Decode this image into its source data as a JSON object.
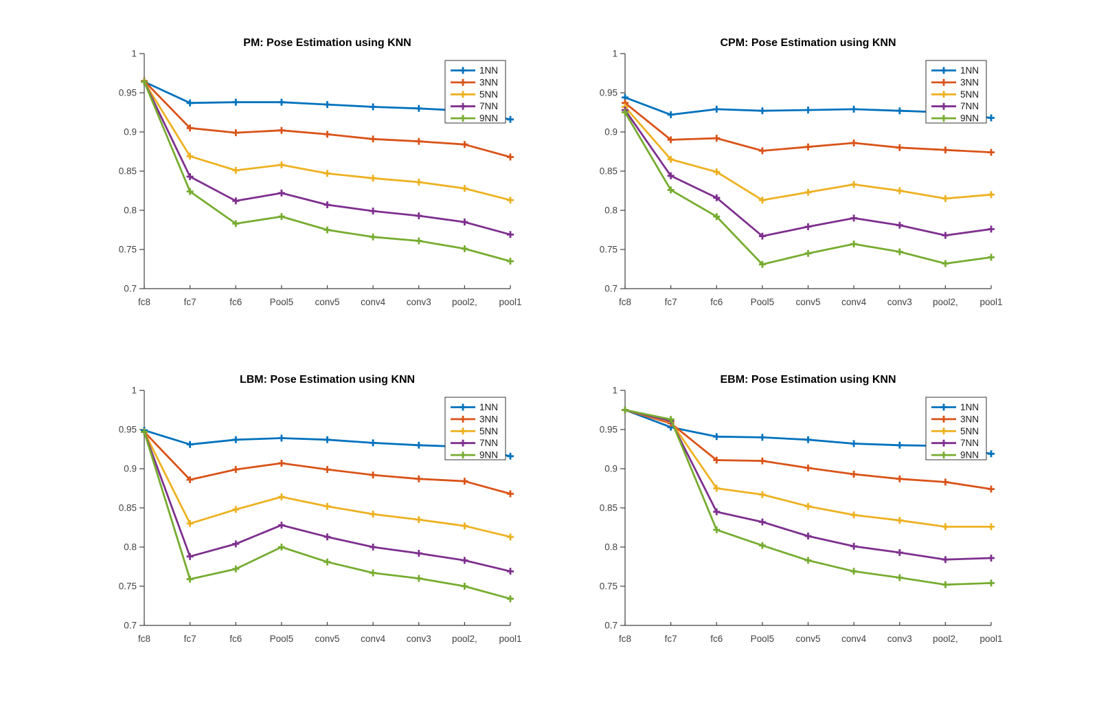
{
  "figure": {
    "background_color": "#ffffff",
    "axis_color": "#404040",
    "tick_label_color": "#424242",
    "title_color": "#000000",
    "legend_border_color": "#333333",
    "legend_background": "#ffffff"
  },
  "series_colors": {
    "1NN": "#0072BD",
    "3NN": "#D95319",
    "5NN": "#EDB120",
    "7NN": "#7E2F8E",
    "9NN": "#77AC30"
  },
  "chart_data": [
    {
      "id": "pm",
      "type": "line",
      "title": "PM: Pose Estimation using KNN",
      "xlabel": "",
      "ylabel": "",
      "grid": false,
      "legend_position": "top-right",
      "legend_entries": [
        "1NN",
        "3NN",
        "5NN",
        "7NN",
        "9NN"
      ],
      "categories": [
        "fc8",
        "fc7",
        "fc6",
        "Pool5",
        "conv5",
        "conv4",
        "conv3",
        "pool2,",
        "pool1"
      ],
      "ylim": [
        0.7,
        1.0
      ],
      "ytick_labels": [
        "0.7",
        "0.75",
        "0.8",
        "0.85",
        "0.9",
        "0.95",
        "1"
      ],
      "yticks": [
        0.7,
        0.75,
        0.8,
        0.85,
        0.9,
        0.95,
        1.0
      ],
      "series": [
        {
          "name": "1NN",
          "color": "#0072BD",
          "values": [
            0.964,
            0.937,
            0.938,
            0.938,
            0.935,
            0.932,
            0.93,
            0.927,
            0.916
          ]
        },
        {
          "name": "3NN",
          "color": "#D95319",
          "values": [
            0.965,
            0.905,
            0.899,
            0.902,
            0.897,
            0.891,
            0.888,
            0.884,
            0.868
          ]
        },
        {
          "name": "5NN",
          "color": "#EDB120",
          "values": [
            0.964,
            0.869,
            0.851,
            0.858,
            0.847,
            0.841,
            0.836,
            0.828,
            0.813
          ]
        },
        {
          "name": "7NN",
          "color": "#7E2F8E",
          "values": [
            0.964,
            0.843,
            0.812,
            0.822,
            0.807,
            0.799,
            0.793,
            0.785,
            0.769
          ]
        },
        {
          "name": "9NN",
          "color": "#77AC30",
          "values": [
            0.964,
            0.824,
            0.783,
            0.792,
            0.775,
            0.766,
            0.761,
            0.751,
            0.735
          ]
        }
      ]
    },
    {
      "id": "cpm",
      "type": "line",
      "title": "CPM: Pose Estimation using KNN",
      "xlabel": "",
      "ylabel": "",
      "grid": false,
      "legend_position": "top-right",
      "legend_entries": [
        "1NN",
        "3NN",
        "5NN",
        "7NN",
        "9NN"
      ],
      "categories": [
        "fc8",
        "fc7",
        "fc6",
        "Pool5",
        "conv5",
        "conv4",
        "conv3",
        "pool2,",
        "pool1"
      ],
      "ylim": [
        0.7,
        1.0
      ],
      "ytick_labels": [
        "0.7",
        "0.75",
        "0.8",
        "0.85",
        "0.9",
        "0.95",
        "1"
      ],
      "yticks": [
        0.7,
        0.75,
        0.8,
        0.85,
        0.9,
        0.95,
        1.0
      ],
      "series": [
        {
          "name": "1NN",
          "color": "#0072BD",
          "values": [
            0.944,
            0.922,
            0.929,
            0.927,
            0.928,
            0.929,
            0.927,
            0.925,
            0.918
          ]
        },
        {
          "name": "3NN",
          "color": "#D95319",
          "values": [
            0.937,
            0.89,
            0.892,
            0.876,
            0.881,
            0.886,
            0.88,
            0.877,
            0.874
          ]
        },
        {
          "name": "5NN",
          "color": "#EDB120",
          "values": [
            0.932,
            0.865,
            0.849,
            0.813,
            0.823,
            0.833,
            0.825,
            0.815,
            0.82
          ]
        },
        {
          "name": "7NN",
          "color": "#7E2F8E",
          "values": [
            0.928,
            0.844,
            0.816,
            0.767,
            0.779,
            0.79,
            0.781,
            0.768,
            0.776
          ]
        },
        {
          "name": "9NN",
          "color": "#77AC30",
          "values": [
            0.925,
            0.826,
            0.792,
            0.731,
            0.745,
            0.757,
            0.747,
            0.732,
            0.74
          ]
        }
      ]
    },
    {
      "id": "lbm",
      "type": "line",
      "title": "LBM: Pose Estimation using KNN",
      "xlabel": "",
      "ylabel": "",
      "grid": false,
      "legend_position": "top-right",
      "legend_entries": [
        "1NN",
        "3NN",
        "5NN",
        "7NN",
        "9NN"
      ],
      "categories": [
        "fc8",
        "fc7",
        "fc6",
        "Pool5",
        "conv5",
        "conv4",
        "conv3",
        "pool2,",
        "pool1"
      ],
      "ylim": [
        0.7,
        1.0
      ],
      "ytick_labels": [
        "0.7",
        "0.75",
        "0.8",
        "0.85",
        "0.9",
        "0.95",
        "1"
      ],
      "yticks": [
        0.7,
        0.75,
        0.8,
        0.85,
        0.9,
        0.95,
        1.0
      ],
      "series": [
        {
          "name": "1NN",
          "color": "#0072BD",
          "values": [
            0.949,
            0.931,
            0.937,
            0.939,
            0.937,
            0.933,
            0.93,
            0.928,
            0.916
          ]
        },
        {
          "name": "3NN",
          "color": "#D95319",
          "values": [
            0.947,
            0.886,
            0.899,
            0.907,
            0.899,
            0.892,
            0.887,
            0.884,
            0.868
          ]
        },
        {
          "name": "5NN",
          "color": "#EDB120",
          "values": [
            0.947,
            0.83,
            0.848,
            0.864,
            0.852,
            0.842,
            0.835,
            0.827,
            0.813
          ]
        },
        {
          "name": "7NN",
          "color": "#7E2F8E",
          "values": [
            0.947,
            0.788,
            0.804,
            0.828,
            0.813,
            0.8,
            0.792,
            0.783,
            0.769
          ]
        },
        {
          "name": "9NN",
          "color": "#77AC30",
          "values": [
            0.947,
            0.759,
            0.772,
            0.8,
            0.781,
            0.767,
            0.76,
            0.75,
            0.734
          ]
        }
      ]
    },
    {
      "id": "ebm",
      "type": "line",
      "title": "EBM: Pose Estimation using KNN",
      "xlabel": "",
      "ylabel": "",
      "grid": false,
      "legend_position": "top-right",
      "legend_entries": [
        "1NN",
        "3NN",
        "5NN",
        "7NN",
        "9NN"
      ],
      "categories": [
        "fc8",
        "fc7",
        "fc6",
        "Pool5",
        "conv5",
        "conv4",
        "conv3",
        "pool2,",
        "pool1"
      ],
      "ylim": [
        0.7,
        1.0
      ],
      "ytick_labels": [
        "0.7",
        "0.75",
        "0.8",
        "0.85",
        "0.9",
        "0.95",
        "1"
      ],
      "yticks": [
        0.7,
        0.75,
        0.8,
        0.85,
        0.9,
        0.95,
        1.0
      ],
      "series": [
        {
          "name": "1NN",
          "color": "#0072BD",
          "values": [
            0.975,
            0.953,
            0.941,
            0.94,
            0.937,
            0.932,
            0.93,
            0.929,
            0.919
          ]
        },
        {
          "name": "3NN",
          "color": "#D95319",
          "values": [
            0.975,
            0.958,
            0.911,
            0.91,
            0.901,
            0.893,
            0.887,
            0.883,
            0.874
          ]
        },
        {
          "name": "5NN",
          "color": "#EDB120",
          "values": [
            0.975,
            0.96,
            0.875,
            0.867,
            0.852,
            0.841,
            0.834,
            0.826,
            0.826
          ]
        },
        {
          "name": "7NN",
          "color": "#7E2F8E",
          "values": [
            0.975,
            0.961,
            0.845,
            0.832,
            0.814,
            0.801,
            0.793,
            0.784,
            0.786
          ]
        },
        {
          "name": "9NN",
          "color": "#77AC30",
          "values": [
            0.975,
            0.963,
            0.822,
            0.802,
            0.783,
            0.769,
            0.761,
            0.752,
            0.754
          ]
        }
      ]
    }
  ]
}
